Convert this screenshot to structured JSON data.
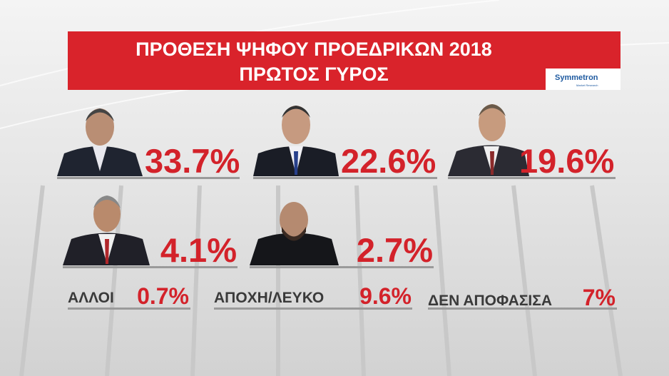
{
  "header": {
    "title_lines": [
      "ΠΡΟΘΕΣΗ ΨΗΦΟΥ ΠΡΟΕΔΡΙΚΩΝ 2018",
      "ΠΡΩΤΟΣ ΓΥΡΟΣ"
    ],
    "logo": {
      "name": "Symmetron",
      "tagline": "Market Research"
    }
  },
  "candidates": [
    {
      "result": "33.7%"
    },
    {
      "result": "22.6%"
    },
    {
      "result": "19.6%"
    },
    {
      "result": "4.1%"
    },
    {
      "result": "2.7%"
    }
  ],
  "others": [
    {
      "label": "ΑΛΛΟΙ",
      "result": "0.7%"
    },
    {
      "label": "ΑΠΟΧΗ/ΛΕΥΚΟ",
      "result": "9.6%"
    },
    {
      "label": "ΔΕΝ ΑΠΟΦΑΣΙΣΑ",
      "result": "7%"
    }
  ]
}
